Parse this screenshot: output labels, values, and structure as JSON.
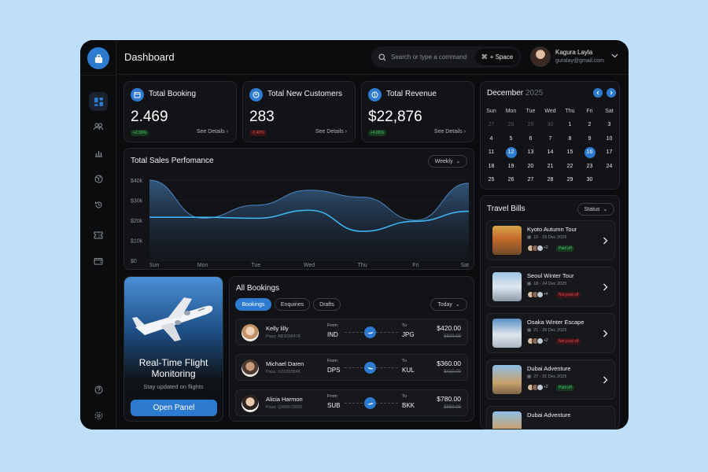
{
  "header": {
    "title": "Dashboard",
    "search_placeholder": "Search or type a command",
    "shortcut": "+ Space",
    "user_name": "Kagura Layla",
    "user_email": "guralay@gmail.com"
  },
  "sidebar": {
    "items": [
      "dashboard-icon",
      "users-icon",
      "chart-icon",
      "globe-icon",
      "history-icon",
      "ticket-icon",
      "wallet-icon",
      "help-icon",
      "settings-icon"
    ]
  },
  "stats": [
    {
      "title": "Total Booking",
      "value": "2.469",
      "change": "+2.56%",
      "trend": "up",
      "link": "See Details"
    },
    {
      "title": "Total New Customers",
      "value": "283",
      "change": "-5.40%",
      "trend": "down",
      "link": "See Details"
    },
    {
      "title": "Total Revenue",
      "value": "$22,876",
      "change": "+4.86%",
      "trend": "up",
      "link": "See Details"
    }
  ],
  "sales": {
    "title": "Total Sales Perfomance",
    "filter": "Weekly"
  },
  "chart_data": {
    "type": "area",
    "title": "Total Sales Perfomance",
    "categories": [
      "Sun",
      "Mon",
      "Tue",
      "Wed",
      "Thu",
      "Fri",
      "Sat"
    ],
    "y_ticks": [
      "$0",
      "$10k",
      "$20k",
      "$30k",
      "$40k"
    ],
    "ylim": [
      0,
      40000
    ],
    "series": [
      {
        "values": [
          40000,
          21000,
          27500,
          35000,
          31500,
          20000,
          38500
        ]
      },
      {
        "values": [
          21500,
          21500,
          21000,
          25000,
          14500,
          19500,
          24500
        ]
      }
    ],
    "grid": true
  },
  "promo": {
    "title_line1": "Real-Time Flight",
    "title_line2": "Monitoring",
    "subtitle": "Stay updated on flights",
    "button": "Open Panel"
  },
  "bookings": {
    "title": "All Bookings",
    "tabs": [
      "Bookings",
      "Enquiries",
      "Drafts"
    ],
    "filter": "Today",
    "from_label": "From",
    "to_label": "To",
    "rows": [
      {
        "name": "Kelly lilly",
        "pass": "Pass: AB3098478",
        "from": "IND",
        "to": "JPG",
        "price": "$420.00",
        "old_price": "$500.00"
      },
      {
        "name": "Michael Daren",
        "pass": "Pass: XZ1093845",
        "from": "DPS",
        "to": "KUL",
        "price": "$360.00",
        "old_price": "$410.00"
      },
      {
        "name": "Alicia Harmon",
        "pass": "Pass: QW6673920",
        "from": "SUB",
        "to": "BKK",
        "price": "$780.00",
        "old_price": "$850.00"
      }
    ]
  },
  "calendar": {
    "month": "December",
    "year": "2025",
    "weekdays": [
      "Sun",
      "Mon",
      "Tue",
      "Wed",
      "Thu",
      "Fri",
      "Sat"
    ],
    "days": [
      {
        "d": "27",
        "muted": true
      },
      {
        "d": "28",
        "muted": true
      },
      {
        "d": "29",
        "muted": true
      },
      {
        "d": "30",
        "muted": true
      },
      {
        "d": "1"
      },
      {
        "d": "2"
      },
      {
        "d": "3"
      },
      {
        "d": "4"
      },
      {
        "d": "5"
      },
      {
        "d": "6"
      },
      {
        "d": "7"
      },
      {
        "d": "8"
      },
      {
        "d": "9"
      },
      {
        "d": "10"
      },
      {
        "d": "11"
      },
      {
        "d": "12",
        "selected": true
      },
      {
        "d": "13"
      },
      {
        "d": "14"
      },
      {
        "d": "15"
      },
      {
        "d": "16",
        "selected": true
      },
      {
        "d": "17"
      },
      {
        "d": "18"
      },
      {
        "d": "19"
      },
      {
        "d": "20"
      },
      {
        "d": "21"
      },
      {
        "d": "22"
      },
      {
        "d": "23"
      },
      {
        "d": "24"
      },
      {
        "d": "25"
      },
      {
        "d": "26"
      },
      {
        "d": "27"
      },
      {
        "d": "28"
      },
      {
        "d": "29"
      },
      {
        "d": "30"
      }
    ]
  },
  "travel_bills": {
    "title": "Travel Bills",
    "filter": "Status",
    "items": [
      {
        "name": "Kyoto Autumn Tour",
        "date": "10 - 15 Dec 2025",
        "count": "+2",
        "status": "Paid off",
        "status_type": "paid"
      },
      {
        "name": "Seoul Winter Tour",
        "date": "18 - 24 Dec 2025",
        "count": "+4",
        "status": "Not paid off",
        "status_type": "np"
      },
      {
        "name": "Osaka Winter Escape",
        "date": "21 - 26 Dec 2025",
        "count": "+2",
        "status": "Not paid off",
        "status_type": "np"
      },
      {
        "name": "Dubai Adventure",
        "date": "27 - 31 Dec 2025",
        "count": "+2",
        "status": "Paid off",
        "status_type": "paid"
      },
      {
        "name": "Dubai Adventure",
        "date": "",
        "count": "",
        "status": "",
        "status_type": ""
      }
    ]
  },
  "colors": {
    "accent": "#2d7bd1",
    "bg": "#0b0c0e",
    "card": "#121316",
    "up": "#44c16a",
    "down": "#e0454d"
  }
}
